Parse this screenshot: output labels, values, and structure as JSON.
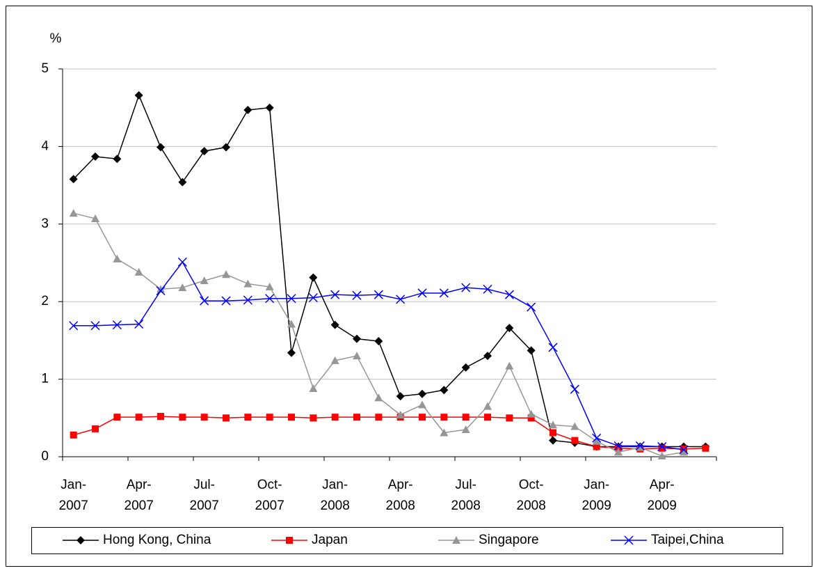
{
  "chart_data": {
    "type": "line",
    "y_label": "%",
    "categories": [
      "Jan-\n2007",
      null,
      null,
      "Apr-\n2007",
      null,
      null,
      "Jul-\n2007",
      null,
      null,
      "Oct-\n2007",
      null,
      null,
      "Jan-\n2008",
      null,
      null,
      "Apr-\n2008",
      null,
      null,
      "Jul-\n2008",
      null,
      null,
      "Oct-\n2008",
      null,
      null,
      "Jan-\n2009",
      null,
      null,
      "Apr-\n2009",
      null,
      null
    ],
    "series": [
      {
        "name": "Hong Kong, China",
        "color": "#000000",
        "marker": "diamond",
        "values": [
          3.58,
          3.87,
          3.84,
          4.66,
          3.99,
          3.54,
          3.94,
          3.99,
          4.47,
          4.5,
          1.34,
          2.31,
          1.7,
          1.52,
          1.49,
          0.78,
          0.81,
          0.86,
          1.15,
          1.3,
          1.66,
          1.37,
          0.21,
          0.18,
          0.13,
          0.13,
          0.13,
          0.13,
          0.13,
          0.13
        ]
      },
      {
        "name": "Japan",
        "color": "#ff0000",
        "marker": "square",
        "values": [
          0.28,
          0.36,
          0.51,
          0.51,
          0.52,
          0.51,
          0.51,
          0.5,
          0.51,
          0.51,
          0.51,
          0.5,
          0.51,
          0.51,
          0.51,
          0.51,
          0.51,
          0.51,
          0.51,
          0.51,
          0.5,
          0.5,
          0.31,
          0.21,
          0.13,
          0.11,
          0.1,
          0.11,
          0.1,
          0.11
        ]
      },
      {
        "name": "Singapore",
        "color": "#969696",
        "marker": "triangle",
        "values": [
          3.14,
          3.07,
          2.55,
          2.38,
          2.16,
          2.18,
          2.27,
          2.35,
          2.23,
          2.19,
          1.71,
          0.88,
          1.24,
          1.3,
          0.76,
          0.54,
          0.67,
          0.31,
          0.35,
          0.65,
          1.17,
          0.55,
          0.41,
          0.39,
          0.2,
          0.06,
          0.12,
          0.01,
          0.06,
          null
        ]
      },
      {
        "name": "Taipei,China",
        "color": "#0000ff",
        "marker": "x",
        "values": [
          1.69,
          1.69,
          1.7,
          1.71,
          2.14,
          2.51,
          2.01,
          2.01,
          2.02,
          2.04,
          2.04,
          2.05,
          2.09,
          2.08,
          2.09,
          2.03,
          2.11,
          2.11,
          2.18,
          2.16,
          2.09,
          1.93,
          1.41,
          0.87,
          0.24,
          0.14,
          0.14,
          0.13,
          0.09,
          null
        ]
      }
    ],
    "ylim": [
      0,
      5
    ],
    "yticks": [
      0,
      1,
      2,
      3,
      4,
      5
    ],
    "grid": true,
    "legend": "bottom"
  }
}
